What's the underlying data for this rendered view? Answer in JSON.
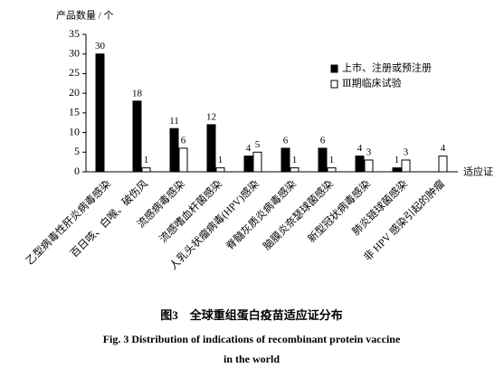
{
  "chart_data": {
    "type": "bar",
    "y_label": "产品数量 / 个",
    "x_label": "适应证",
    "categories": [
      "乙型病毒性肝炎病毒感染",
      "百日咳、白喉、破伤风",
      "流感病毒感染",
      "流感嗜血杆菌感染",
      "人乳头状瘤病毒(HPV)感染",
      "脊髓灰质炎病毒感染",
      "脑膜炎奈瑟球菌感染",
      "新型冠状病毒感染",
      "肺炎链球菌感染",
      "非 HPV 感染引起的肿瘤"
    ],
    "series": [
      {
        "name": "上市、注册或预注册",
        "color": "#000000",
        "values": [
          30,
          18,
          11,
          12,
          4,
          6,
          6,
          4,
          1,
          null
        ]
      },
      {
        "name": "Ⅲ期临床试验",
        "color": "#ffffff",
        "values": [
          null,
          1,
          6,
          1,
          5,
          1,
          1,
          3,
          3,
          4
        ]
      }
    ],
    "ylim": [
      0,
      35
    ],
    "yticks": [
      0,
      5,
      10,
      15,
      20,
      25,
      30,
      35
    ],
    "legend": "upper right",
    "caption": [
      "图3　全球重组蛋白疫苗适应证分布",
      "Fig. 3   Distribution of indications of recombinant protein vaccine",
      "in the world"
    ]
  }
}
